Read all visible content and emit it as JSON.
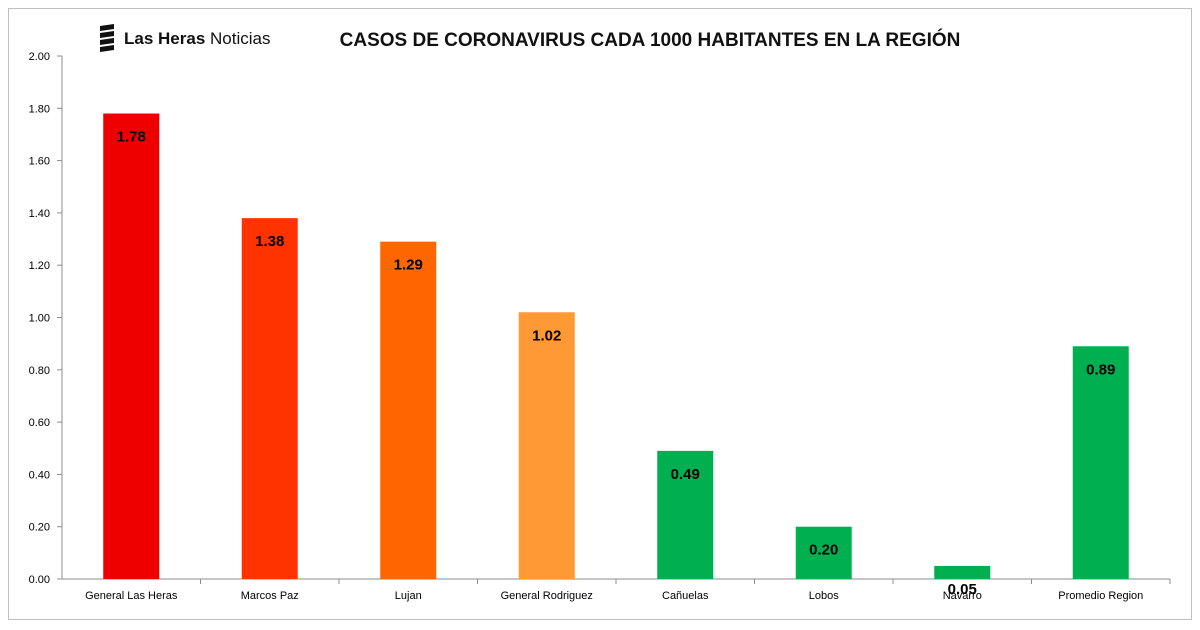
{
  "brand": {
    "name_bold": "Las Heras",
    "name_light": "Noticias",
    "logo_icon": "stacked-bars-logo-icon"
  },
  "chart_data": {
    "type": "bar",
    "title": "CASOS DE CORONAVIRUS CADA 1000 HABITANTES EN LA REGIÓN",
    "xlabel": "",
    "ylabel": "",
    "categories": [
      "General Las Heras",
      "Marcos Paz",
      "Lujan",
      "General Rodriguez",
      "Cañuelas",
      "Lobos",
      "Navarro",
      "Promedio Region"
    ],
    "values": [
      1.78,
      1.38,
      1.29,
      1.02,
      0.49,
      0.2,
      0.05,
      0.89
    ],
    "value_labels": [
      "1.78",
      "1.38",
      "1.29",
      "1.02",
      "0.49",
      "0.20",
      "0.05",
      "0.89"
    ],
    "bar_colors": [
      "#ee0000",
      "#ff3300",
      "#ff6600",
      "#ff9933",
      "#00b050",
      "#00b050",
      "#00b050",
      "#00b050"
    ],
    "ylim": [
      0,
      2.0
    ],
    "y_ticks": [
      "0.00",
      "0.20",
      "0.40",
      "0.60",
      "0.80",
      "1.00",
      "1.20",
      "1.40",
      "1.60",
      "1.80",
      "2.00"
    ],
    "grid": false,
    "legend": "none"
  }
}
